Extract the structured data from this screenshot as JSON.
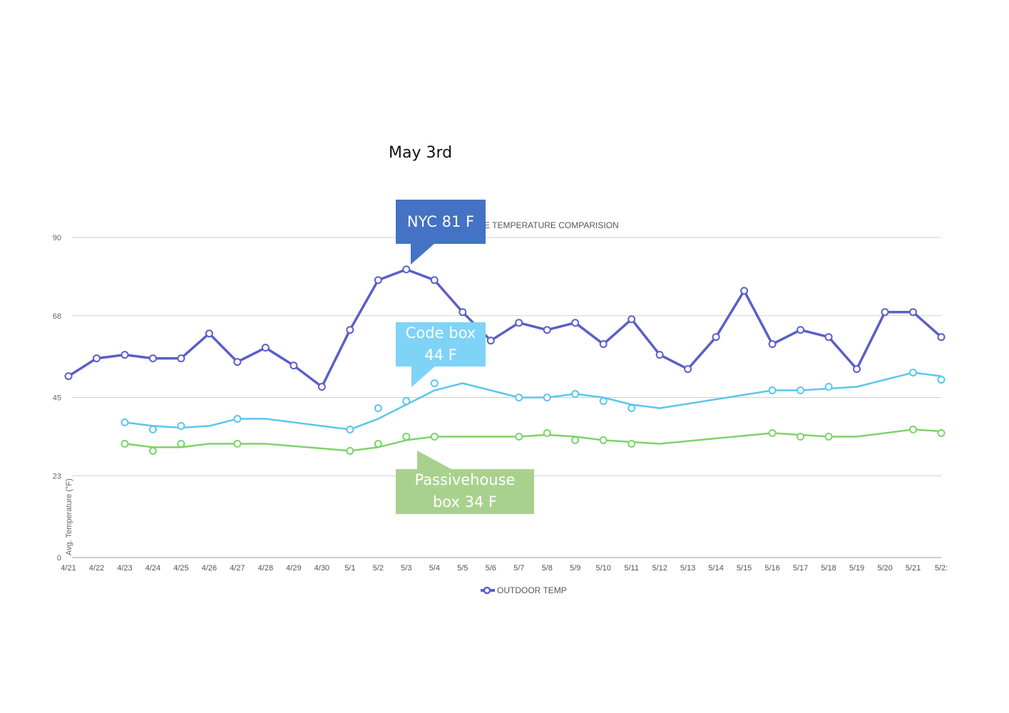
{
  "heading": "May 3rd",
  "callouts": {
    "nyc": "NYC 81 F",
    "code_line1": "Code box",
    "code_line2": "44 F",
    "passive_line1": "Passivehouse",
    "passive_line2": "box 34 F"
  },
  "chart_data": {
    "type": "line",
    "title": "E TEMPERATURE COMPARISION",
    "ylabel": "Avg. Temperature (°F)",
    "xlabel": "",
    "ylim": [
      0,
      90
    ],
    "yticks": [
      0,
      23,
      45,
      68,
      90
    ],
    "categories": [
      "4/21",
      "4/22",
      "4/23",
      "4/24",
      "4/25",
      "4/26",
      "4/27",
      "4/28",
      "4/29",
      "4/30",
      "5/1",
      "5/2",
      "5/3",
      "5/4",
      "5/5",
      "5/6",
      "5/7",
      "5/8",
      "5/9",
      "5/10",
      "5/11",
      "5/12",
      "5/13",
      "5/14",
      "5/15",
      "5/16",
      "5/17",
      "5/18",
      "5/19",
      "5/20",
      "5/21",
      "5/2:"
    ],
    "legend": [
      "OUTDOOR TEMP"
    ],
    "series": [
      {
        "name": "OUTDOOR TEMP",
        "color": "#5b5fc7",
        "values": [
          51,
          56,
          57,
          56,
          56,
          63,
          55,
          59,
          54,
          48,
          64,
          78,
          81,
          78,
          69,
          61,
          66,
          64,
          66,
          60,
          67,
          57,
          53,
          62,
          75,
          60,
          64,
          62,
          53,
          69,
          69,
          62
        ]
      },
      {
        "name": "Code box",
        "color": "#5bc6ee",
        "line": [
          null,
          null,
          38,
          37,
          36.5,
          37,
          39,
          39,
          null,
          null,
          36,
          39,
          43,
          47,
          49,
          null,
          45,
          45,
          46,
          45,
          43,
          42,
          null,
          null,
          null,
          47,
          47,
          47.5,
          48,
          null,
          52,
          51
        ],
        "markers": [
          null,
          null,
          38,
          36,
          37,
          null,
          39,
          null,
          null,
          null,
          36,
          42,
          44,
          49,
          null,
          null,
          45,
          45,
          46,
          44,
          42,
          null,
          null,
          null,
          null,
          47,
          47,
          48,
          null,
          null,
          52,
          50
        ]
      },
      {
        "name": "Passivehouse box",
        "color": "#7ed36a",
        "line": [
          null,
          null,
          32,
          31,
          31,
          32,
          32,
          32,
          null,
          null,
          30,
          31,
          33,
          34,
          34,
          null,
          34,
          34.5,
          34,
          33,
          32.5,
          32,
          null,
          null,
          null,
          35,
          34.5,
          34,
          34,
          null,
          36,
          35.5
        ],
        "markers": [
          null,
          null,
          32,
          30,
          32,
          null,
          32,
          null,
          null,
          null,
          30,
          32,
          34,
          34,
          null,
          null,
          34,
          35,
          33,
          33,
          32,
          null,
          null,
          null,
          null,
          35,
          34,
          34,
          null,
          null,
          36,
          35
        ]
      }
    ]
  }
}
